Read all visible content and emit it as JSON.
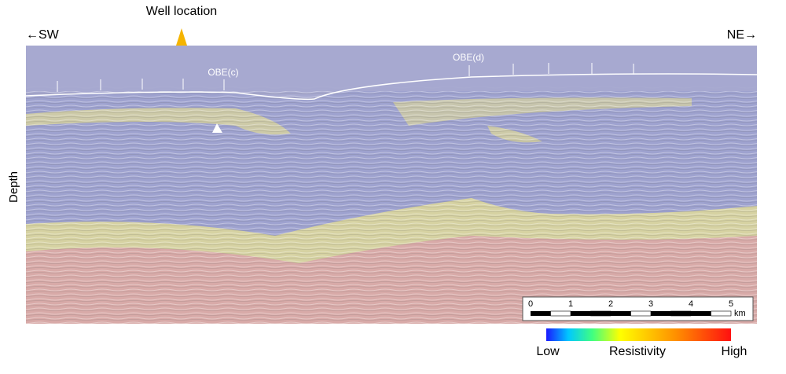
{
  "header": {
    "well_label": "Well location",
    "left_direction": "←SW",
    "right_direction": "NE→",
    "depth_label": "Depth"
  },
  "annotations": {
    "obe_c": "OBE(c)",
    "obe_d": "OBE(d)"
  },
  "scale_bar": {
    "ticks": [
      "0",
      "1",
      "2",
      "3",
      "4",
      "5"
    ],
    "unit": "km"
  },
  "color_scale": {
    "low": "Low",
    "title": "Resistivity",
    "high": "High"
  }
}
